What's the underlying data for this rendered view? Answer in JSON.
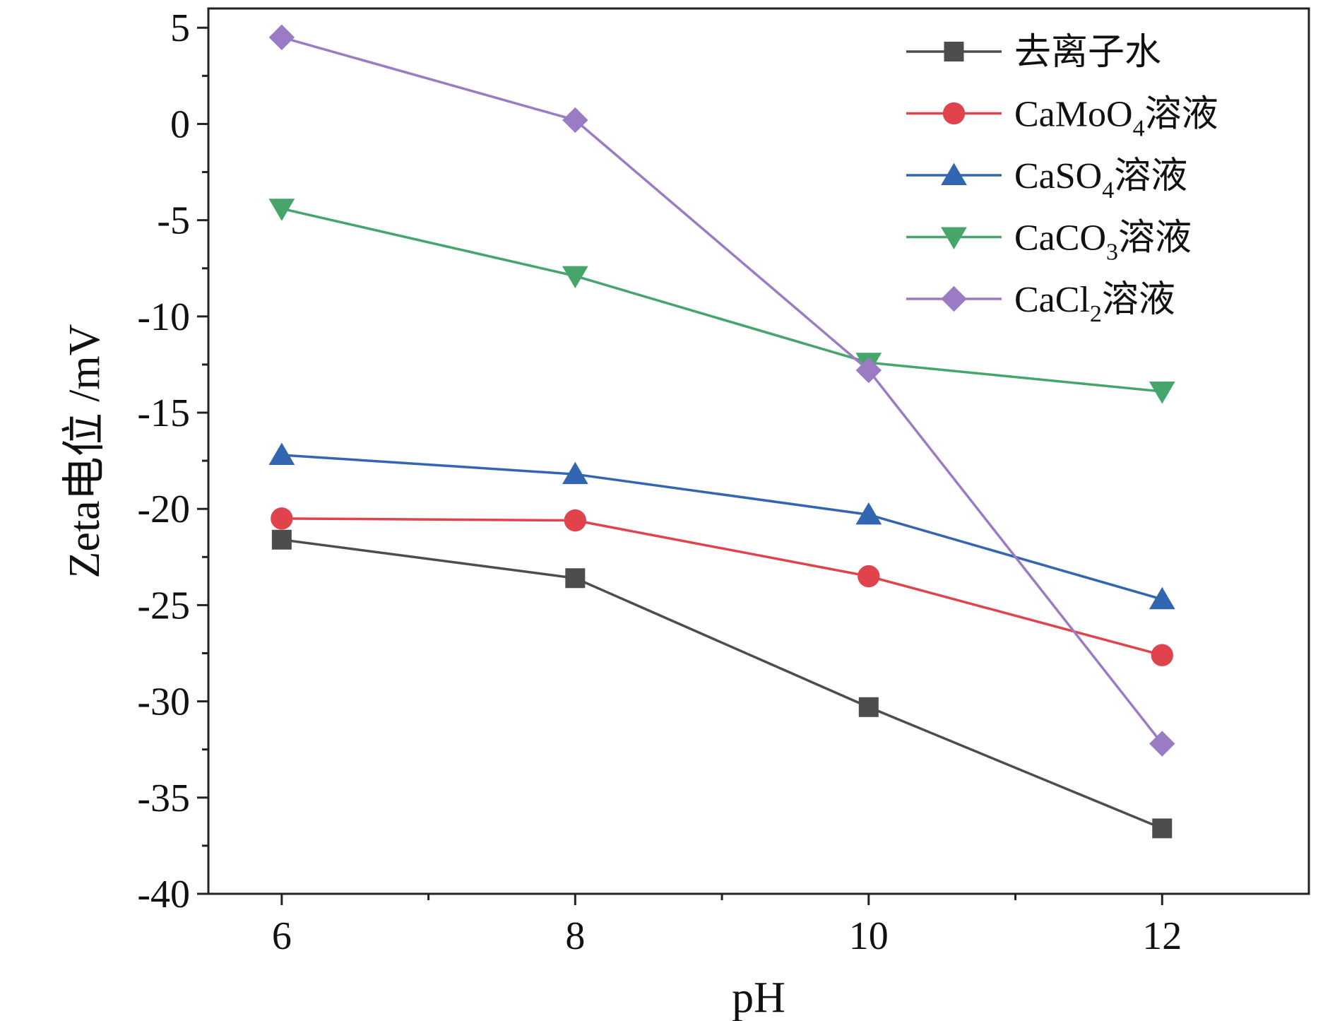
{
  "chart_data": {
    "type": "line",
    "title": "",
    "xlabel": "pH",
    "ylabel": "Zeta电位 /mV",
    "x": [
      6,
      8,
      10,
      12
    ],
    "x_ticks": [
      6,
      8,
      10,
      12
    ],
    "xlim": [
      5.5,
      13.0
    ],
    "y_ticks": [
      5,
      0,
      -5,
      -10,
      -15,
      -20,
      -25,
      -30,
      -35,
      -40
    ],
    "ylim": [
      -40,
      6.0
    ],
    "grid": false,
    "legend_position": "top-right",
    "series": [
      {
        "name": "去离子水",
        "legend_main": "去离子水",
        "legend_sub": "",
        "legend_tail": "",
        "marker": "square",
        "color": "#4d4d4d",
        "values": [
          -21.6,
          -23.6,
          -30.3,
          -36.6
        ]
      },
      {
        "name": "CaMoO4溶液",
        "legend_main": "CaMoO",
        "legend_sub": "4",
        "legend_tail": "溶液",
        "marker": "circle",
        "color": "#e0434b",
        "values": [
          -20.5,
          -20.6,
          -23.5,
          -27.6
        ]
      },
      {
        "name": "CaSO4溶液",
        "legend_main": "CaSO",
        "legend_sub": "4",
        "legend_tail": "溶液",
        "marker": "triangle-up",
        "color": "#3266b0",
        "values": [
          -17.2,
          -18.2,
          -20.3,
          -24.7
        ]
      },
      {
        "name": "CaCO3溶液",
        "legend_main": "CaCO",
        "legend_sub": "3",
        "legend_tail": "溶液",
        "marker": "triangle-down",
        "color": "#45a56b",
        "values": [
          -4.4,
          -7.9,
          -12.4,
          -13.9
        ]
      },
      {
        "name": "CaCl2溶液",
        "legend_main": "CaCl",
        "legend_sub": "2",
        "legend_tail": "溶液",
        "marker": "diamond",
        "color": "#9b7bc3",
        "values": [
          4.5,
          0.2,
          -12.8,
          -32.2
        ]
      }
    ]
  }
}
